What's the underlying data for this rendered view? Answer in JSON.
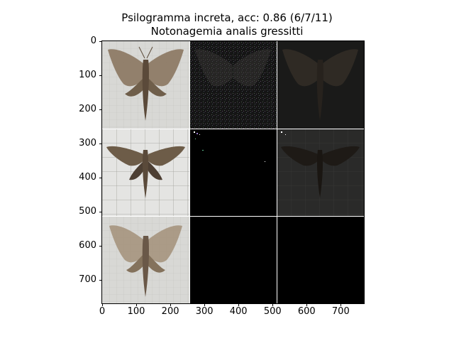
{
  "title": {
    "line1": "Psilogramma increta, acc: 0.86 (6/7/11)",
    "line2": "Notonagemia analis gressitti"
  },
  "image_grid": {
    "rows": 3,
    "cols": 3,
    "cells": [
      {
        "row": 0,
        "col": 0,
        "content": "moth-photo",
        "tone": "light-gray-background-brown-moth"
      },
      {
        "row": 0,
        "col": 1,
        "content": "noise-map",
        "tone": "dark-colored-speckle"
      },
      {
        "row": 0,
        "col": 2,
        "content": "dim-moth",
        "tone": "dark"
      },
      {
        "row": 1,
        "col": 0,
        "content": "moth-photo",
        "tone": "gridded-background-patterned-moth"
      },
      {
        "row": 1,
        "col": 1,
        "content": "sparse-pixels",
        "tone": "black"
      },
      {
        "row": 1,
        "col": 2,
        "content": "dim-moth",
        "tone": "dark"
      },
      {
        "row": 2,
        "col": 0,
        "content": "moth-photo",
        "tone": "light-gray-background-brown-moth"
      },
      {
        "row": 2,
        "col": 1,
        "content": "empty",
        "tone": "black"
      },
      {
        "row": 2,
        "col": 2,
        "content": "empty",
        "tone": "black"
      }
    ]
  },
  "axes": {
    "x_ticks": [
      0,
      100,
      200,
      300,
      400,
      500,
      600,
      700
    ],
    "y_ticks": [
      0,
      100,
      200,
      300,
      400,
      500,
      600,
      700
    ],
    "extent": 768
  },
  "colors": {
    "moth_brown": "#7a6650",
    "light_bg": "#d6d6d3",
    "dark_bg": "#000000"
  }
}
